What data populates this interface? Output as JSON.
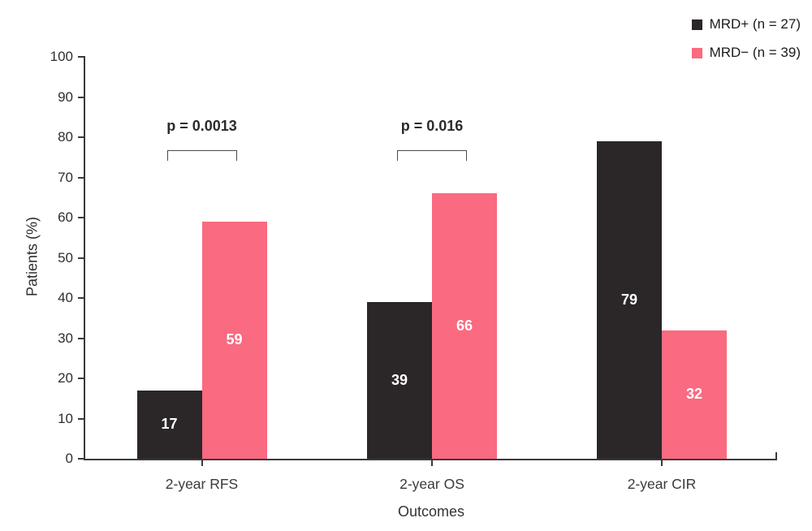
{
  "chart_data": {
    "type": "bar",
    "title": "",
    "categories": [
      "2-year RFS",
      "2-year OS",
      "2-year CIR"
    ],
    "series": [
      {
        "name": "MRD+ (n = 27)",
        "color": "#2b2628",
        "values": [
          17,
          39,
          79
        ]
      },
      {
        "name": "MRD− (n = 39)",
        "color": "#fa6a80",
        "values": [
          59,
          66,
          32
        ]
      }
    ],
    "xlabel": "Outcomes",
    "ylabel": "Patients (%)",
    "ylim": [
      0,
      100
    ],
    "yticks": [
      0,
      10,
      20,
      30,
      40,
      50,
      60,
      70,
      80,
      90,
      100
    ],
    "grid": false,
    "legend_position": "top-right",
    "bar_value_labels_visible": true,
    "bar_value_label_color": "#ffffff",
    "axis_color": "#3a3a3a",
    "annotations": [
      {
        "text": "p = 0.0013",
        "group_index": 0
      },
      {
        "text": "p = 0.016",
        "group_index": 1
      }
    ]
  }
}
